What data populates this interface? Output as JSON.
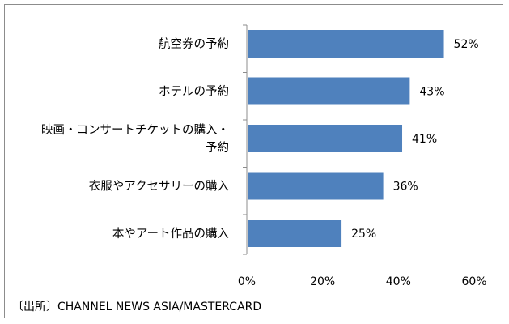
{
  "chart_data": {
    "type": "bar",
    "orientation": "horizontal",
    "categories": [
      "航空券の予約",
      "ホテルの予約",
      "映画・コンサートチケットの購入・予約",
      "衣服やアクセサリーの購入",
      "本やアート作品の購入"
    ],
    "category_lines": [
      [
        "航空券の予約"
      ],
      [
        "ホテルの予約"
      ],
      [
        "映画・コンサートチケットの購入・",
        "予約"
      ],
      [
        "衣服やアクセサリーの購入"
      ],
      [
        "本やアート作品の購入"
      ]
    ],
    "values": [
      52,
      43,
      41,
      36,
      25
    ],
    "value_labels": [
      "52%",
      "43%",
      "41%",
      "36%",
      "25%"
    ],
    "xlim": [
      0,
      60
    ],
    "x_ticks": [
      0,
      20,
      40,
      60
    ],
    "x_tick_labels": [
      "0%",
      "20%",
      "40%",
      "60%"
    ],
    "bar_color": "#4f81bd",
    "grid": false,
    "legend": "none"
  },
  "source": "〔出所〕CHANNEL NEWS ASIA/MASTERCARD"
}
